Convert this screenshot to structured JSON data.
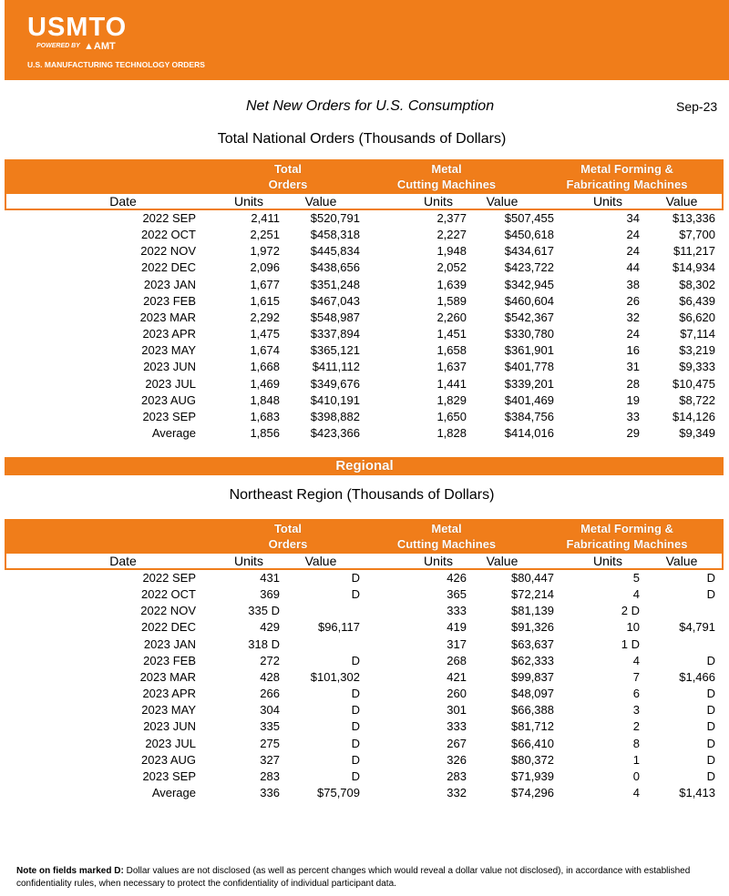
{
  "header": {
    "logo": "USMTO",
    "powered_by": "POWERED BY",
    "amt": "AMT",
    "subtitle": "U.S. MANUFACTURING TECHNOLOGY ORDERS"
  },
  "report": {
    "title": "Net New Orders for U.S. Consumption",
    "date": "Sep-23"
  },
  "national": {
    "title": "Total National Orders (Thousands of Dollars)",
    "groups": [
      [
        "Total",
        "Orders"
      ],
      [
        "Metal",
        "Cutting Machines"
      ],
      [
        "Metal Forming &",
        "Fabricating Machines"
      ]
    ],
    "columns": [
      "Date",
      "Units",
      "Value",
      "Units",
      "Value",
      "Units",
      "Value"
    ],
    "rows": [
      [
        "2022 SEP",
        "2,411",
        "$520,791",
        "2,377",
        "$507,455",
        "34",
        "$13,336"
      ],
      [
        "2022 OCT",
        "2,251",
        "$458,318",
        "2,227",
        "$450,618",
        "24",
        "$7,700"
      ],
      [
        "2022 NOV",
        "1,972",
        "$445,834",
        "1,948",
        "$434,617",
        "24",
        "$11,217"
      ],
      [
        "2022 DEC",
        "2,096",
        "$438,656",
        "2,052",
        "$423,722",
        "44",
        "$14,934"
      ],
      [
        "2023 JAN",
        "1,677",
        "$351,248",
        "1,639",
        "$342,945",
        "38",
        "$8,302"
      ],
      [
        "2023 FEB",
        "1,615",
        "$467,043",
        "1,589",
        "$460,604",
        "26",
        "$6,439"
      ],
      [
        "2023 MAR",
        "2,292",
        "$548,987",
        "2,260",
        "$542,367",
        "32",
        "$6,620"
      ],
      [
        "2023 APR",
        "1,475",
        "$337,894",
        "1,451",
        "$330,780",
        "24",
        "$7,114"
      ],
      [
        "2023 MAY",
        "1,674",
        "$365,121",
        "1,658",
        "$361,901",
        "16",
        "$3,219"
      ],
      [
        "2023 JUN",
        "1,668",
        "$411,112",
        "1,637",
        "$401,778",
        "31",
        "$9,333"
      ],
      [
        "2023 JUL",
        "1,469",
        "$349,676",
        "1,441",
        "$339,201",
        "28",
        "$10,475"
      ],
      [
        "2023 AUG",
        "1,848",
        "$410,191",
        "1,829",
        "$401,469",
        "19",
        "$8,722"
      ],
      [
        "2023 SEP",
        "1,683",
        "$398,882",
        "1,650",
        "$384,756",
        "33",
        "$14,126"
      ],
      [
        "Average",
        "1,856",
        "$423,366",
        "1,828",
        "$414,016",
        "29",
        "$9,349"
      ]
    ]
  },
  "regional_banner": "Regional",
  "northeast": {
    "title": "Northeast Region (Thousands of Dollars)",
    "groups": [
      [
        "Total",
        "Orders"
      ],
      [
        "Metal",
        "Cutting Machines"
      ],
      [
        "Metal Forming &",
        "Fabricating Machines"
      ]
    ],
    "columns": [
      "Date",
      "Units",
      "Value",
      "Units",
      "Value",
      "Units",
      "Value"
    ],
    "rows": [
      [
        "2022 SEP",
        "431",
        "D",
        "426",
        "$80,447",
        "5",
        "D"
      ],
      [
        "2022 OCT",
        "369",
        "D",
        "365",
        "$72,214",
        "4",
        "D"
      ],
      [
        "2022 NOV",
        "335 D",
        null,
        "333",
        "$81,139",
        "2 D",
        null
      ],
      [
        "2022 DEC",
        "429",
        "$96,117",
        "419",
        "$91,326",
        "10",
        "$4,791"
      ],
      [
        "2023 JAN",
        "318 D",
        null,
        "317",
        "$63,637",
        "1 D",
        null
      ],
      [
        "2023 FEB",
        "272",
        "D",
        "268",
        "$62,333",
        "4",
        "D"
      ],
      [
        "2023 MAR",
        "428",
        "$101,302",
        "421",
        "$99,837",
        "7",
        "$1,466"
      ],
      [
        "2023 APR",
        "266",
        "D",
        "260",
        "$48,097",
        "6",
        "D"
      ],
      [
        "2023 MAY",
        "304",
        "D",
        "301",
        "$66,388",
        "3",
        "D"
      ],
      [
        "2023 JUN",
        "335",
        "D",
        "333",
        "$81,712",
        "2",
        "D"
      ],
      [
        "2023 JUL",
        "275",
        "D",
        "267",
        "$66,410",
        "8",
        "D"
      ],
      [
        "2023 AUG",
        "327",
        "D",
        "326",
        "$80,372",
        "1",
        "D"
      ],
      [
        "2023 SEP",
        "283",
        "D",
        "283",
        "$71,939",
        "0",
        "D"
      ],
      [
        "Average",
        "336",
        "$75,709",
        "332",
        "$74,296",
        "4",
        "$1,413"
      ]
    ]
  },
  "note": {
    "label": "Note on fields marked D:",
    "text": "Dollar values are not disclosed (as well as percent changes which would reveal a dollar value not disclosed), in accordance with established confidentiality rules, when necessary to protect the confidentiality of individual participant data."
  }
}
